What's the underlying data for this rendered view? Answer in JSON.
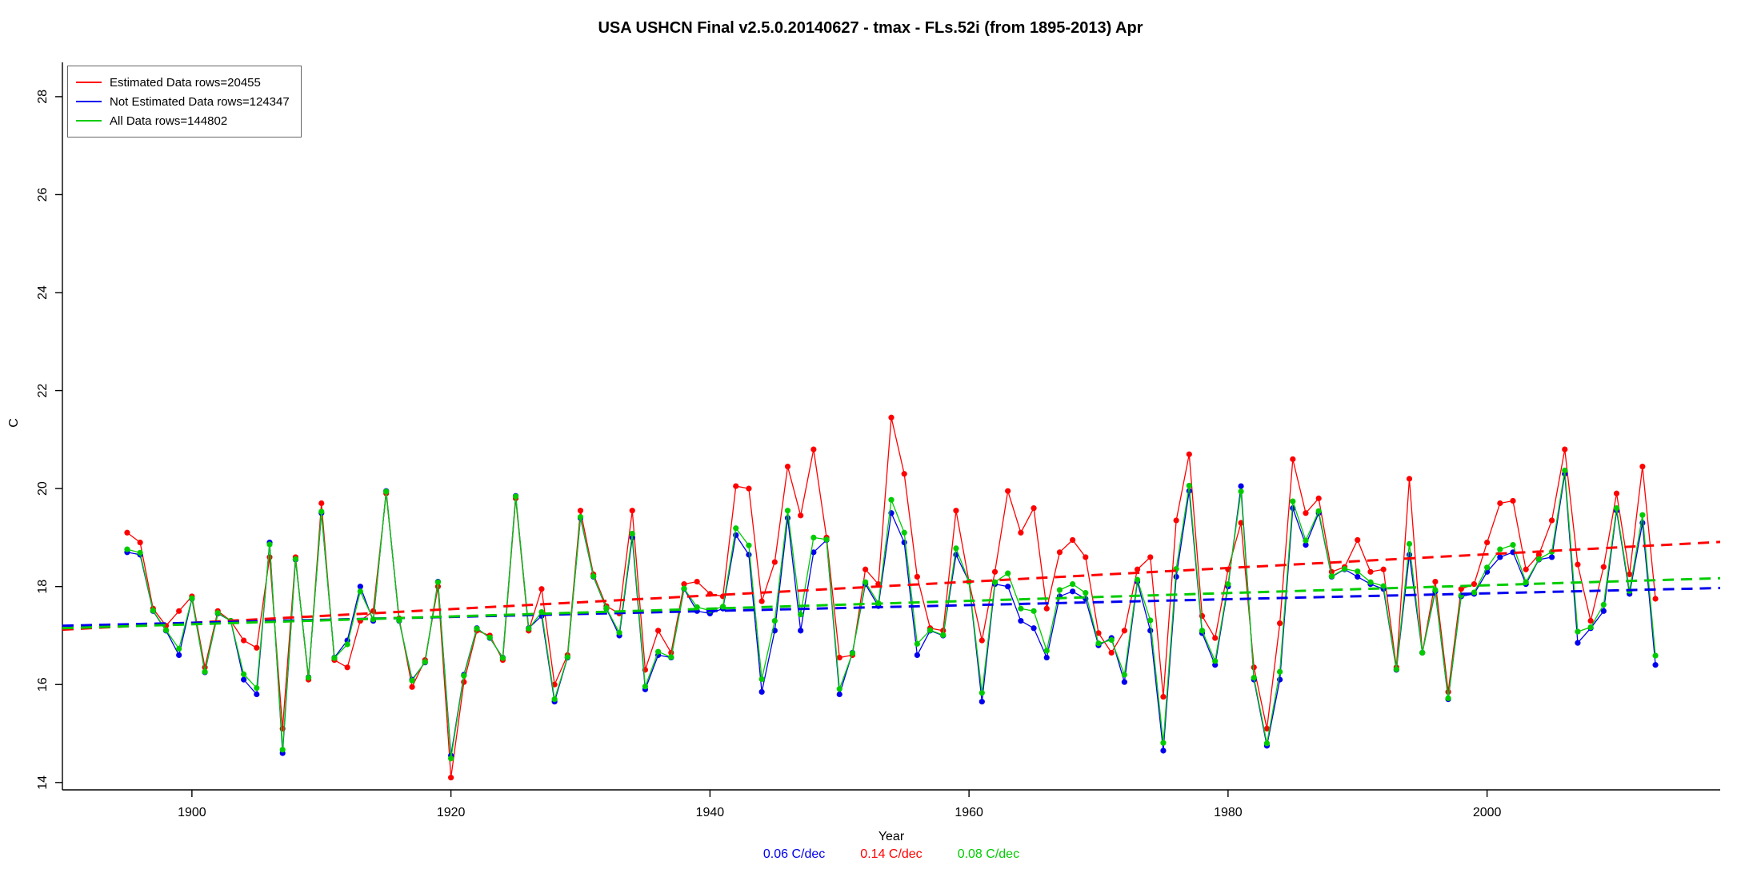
{
  "page": {
    "title": "USA USHCN Final v2.5.0.20140627 - tmax - FLs.52i (from 1895-2013) Apr"
  },
  "chart_data": {
    "type": "line",
    "title": "USA USHCN Final v2.5.0.20140627 - tmax - FLs.52i (from 1895-2013) Apr",
    "xlabel": "Year",
    "ylabel": "C",
    "grid": false,
    "legend_position": "top-left",
    "xlim": [
      1890,
      2018
    ],
    "ylim": [
      13.85,
      28.7
    ],
    "xticks": [
      1900,
      1920,
      1940,
      1960,
      1980,
      2000
    ],
    "yticks": [
      14,
      16,
      18,
      20,
      22,
      24,
      26,
      28
    ],
    "x": [
      1895,
      1896,
      1897,
      1898,
      1899,
      1900,
      1901,
      1902,
      1903,
      1904,
      1905,
      1906,
      1907,
      1908,
      1909,
      1910,
      1911,
      1912,
      1913,
      1914,
      1915,
      1916,
      1917,
      1918,
      1919,
      1920,
      1921,
      1922,
      1923,
      1924,
      1925,
      1926,
      1927,
      1928,
      1929,
      1930,
      1931,
      1932,
      1933,
      1934,
      1935,
      1936,
      1937,
      1938,
      1939,
      1940,
      1941,
      1942,
      1943,
      1944,
      1945,
      1946,
      1947,
      1948,
      1949,
      1950,
      1951,
      1952,
      1953,
      1954,
      1955,
      1956,
      1957,
      1958,
      1959,
      1960,
      1961,
      1962,
      1963,
      1964,
      1965,
      1966,
      1967,
      1968,
      1969,
      1970,
      1971,
      1972,
      1973,
      1974,
      1975,
      1976,
      1977,
      1978,
      1979,
      1980,
      1981,
      1982,
      1983,
      1984,
      1985,
      1986,
      1987,
      1988,
      1989,
      1990,
      1991,
      1992,
      1993,
      1994,
      1995,
      1996,
      1997,
      1998,
      1999,
      2000,
      2001,
      2002,
      2003,
      2004,
      2005,
      2006,
      2007,
      2008,
      2009,
      2010,
      2011,
      2012,
      2013
    ],
    "series": [
      {
        "name": "Estimated Data rows=20455",
        "color": "#FF0000",
        "trend": {
          "rate_label": "0.14 C/dec",
          "x": [
            1890,
            2018
          ],
          "y": [
            17.12,
            18.91
          ]
        },
        "values": [
          19.1,
          18.9,
          17.55,
          17.2,
          17.5,
          17.8,
          16.35,
          17.5,
          17.3,
          16.9,
          16.75,
          18.6,
          15.1,
          18.6,
          16.1,
          19.7,
          16.5,
          16.35,
          17.3,
          17.5,
          19.9,
          17.35,
          15.95,
          16.5,
          18.0,
          14.1,
          16.05,
          17.1,
          17.0,
          16.5,
          19.8,
          17.1,
          17.95,
          16.0,
          16.6,
          19.55,
          18.25,
          17.6,
          17.45,
          19.55,
          16.3,
          17.1,
          16.65,
          18.05,
          18.1,
          17.85,
          17.8,
          20.05,
          20.0,
          17.7,
          18.5,
          20.45,
          19.45,
          20.8,
          19.0,
          16.55,
          16.6,
          18.35,
          18.05,
          21.45,
          20.3,
          18.2,
          17.15,
          17.1,
          19.55,
          18.1,
          16.9,
          18.3,
          19.95,
          19.1,
          19.6,
          17.55,
          18.7,
          18.95,
          18.6,
          17.05,
          16.65,
          17.1,
          18.35,
          18.6,
          15.75,
          19.35,
          20.7,
          17.4,
          16.95,
          18.35,
          19.3,
          16.35,
          15.1,
          17.25,
          20.6,
          19.5,
          19.8,
          18.3,
          18.4,
          18.95,
          18.3,
          18.35,
          16.35,
          20.2,
          16.65,
          18.1,
          15.85,
          17.95,
          18.05,
          18.9,
          19.7,
          19.75,
          18.35,
          18.65,
          19.35,
          20.8,
          18.45,
          17.3,
          18.4,
          19.9,
          18.25,
          20.45,
          17.75
        ]
      },
      {
        "name": "Not Estimated Data rows=124347",
        "color": "#0000EE",
        "trend": {
          "rate_label": "0.06 C/dec",
          "x": [
            1890,
            2018
          ],
          "y": [
            17.2,
            17.97
          ]
        },
        "values": [
          18.7,
          18.65,
          17.5,
          17.1,
          16.6,
          17.75,
          16.25,
          17.45,
          17.3,
          16.1,
          15.8,
          18.9,
          14.6,
          18.55,
          16.15,
          19.5,
          16.55,
          16.9,
          18.0,
          17.3,
          19.95,
          17.3,
          16.1,
          16.45,
          18.1,
          14.55,
          16.2,
          17.15,
          16.95,
          16.55,
          19.85,
          17.15,
          17.4,
          15.65,
          16.55,
          19.4,
          18.2,
          17.55,
          17.0,
          19.0,
          15.9,
          16.6,
          16.55,
          17.95,
          17.5,
          17.45,
          17.55,
          19.05,
          18.65,
          15.85,
          17.1,
          19.4,
          17.1,
          18.7,
          18.95,
          15.8,
          16.65,
          18.05,
          17.6,
          19.5,
          18.9,
          16.6,
          17.1,
          17.0,
          18.65,
          18.1,
          15.65,
          18.05,
          18.0,
          17.3,
          17.15,
          16.55,
          17.8,
          17.9,
          17.75,
          16.8,
          16.95,
          16.05,
          18.1,
          17.1,
          14.65,
          18.2,
          19.95,
          17.05,
          16.4,
          18.0,
          20.05,
          16.1,
          14.75,
          16.1,
          19.6,
          18.85,
          19.5,
          18.2,
          18.35,
          18.2,
          18.05,
          17.95,
          16.3,
          18.65,
          16.65,
          17.9,
          15.7,
          17.8,
          17.85,
          18.3,
          18.6,
          18.7,
          18.05,
          18.55,
          18.6,
          20.3,
          16.85,
          17.15,
          17.5,
          19.55,
          17.85,
          19.3,
          16.4
        ]
      },
      {
        "name": "All Data rows=144802",
        "color": "#00CC00",
        "trend": {
          "rate_label": "0.08 C/dec",
          "x": [
            1890,
            2018
          ],
          "y": [
            17.15,
            18.17
          ]
        },
        "values": [
          18.76,
          18.69,
          17.51,
          17.11,
          16.73,
          17.76,
          16.26,
          17.46,
          17.3,
          16.21,
          15.93,
          18.86,
          14.67,
          18.56,
          16.14,
          19.53,
          16.54,
          16.82,
          17.9,
          17.33,
          19.94,
          17.31,
          16.08,
          16.46,
          18.09,
          14.49,
          16.18,
          17.14,
          16.96,
          16.54,
          19.84,
          17.14,
          17.48,
          15.7,
          16.56,
          19.42,
          18.21,
          17.56,
          17.06,
          19.08,
          15.96,
          16.67,
          16.56,
          17.96,
          17.58,
          17.51,
          17.59,
          19.19,
          18.84,
          16.11,
          17.3,
          19.55,
          17.43,
          19.0,
          18.96,
          15.91,
          16.64,
          18.09,
          17.66,
          19.77,
          19.1,
          16.83,
          17.11,
          17.01,
          18.78,
          18.1,
          15.83,
          18.09,
          18.27,
          17.55,
          17.5,
          16.69,
          17.93,
          18.05,
          17.87,
          16.84,
          16.91,
          16.2,
          18.14,
          17.31,
          14.81,
          18.36,
          20.06,
          17.1,
          16.48,
          18.05,
          19.94,
          16.14,
          14.8,
          16.26,
          19.74,
          18.94,
          19.54,
          18.21,
          18.36,
          18.31,
          18.09,
          18.01,
          16.31,
          18.87,
          16.65,
          17.93,
          15.72,
          17.82,
          17.88,
          18.39,
          18.76,
          18.85,
          18.09,
          18.56,
          18.71,
          20.37,
          17.08,
          17.17,
          17.63,
          19.6,
          17.91,
          19.46,
          16.59
        ]
      }
    ],
    "footer_rates": [
      {
        "label": "0.06 C/dec",
        "color": "#0000EE"
      },
      {
        "label": "0.14 C/dec",
        "color": "#FF0000"
      },
      {
        "label": "0.08 C/dec",
        "color": "#00CC00"
      }
    ]
  }
}
